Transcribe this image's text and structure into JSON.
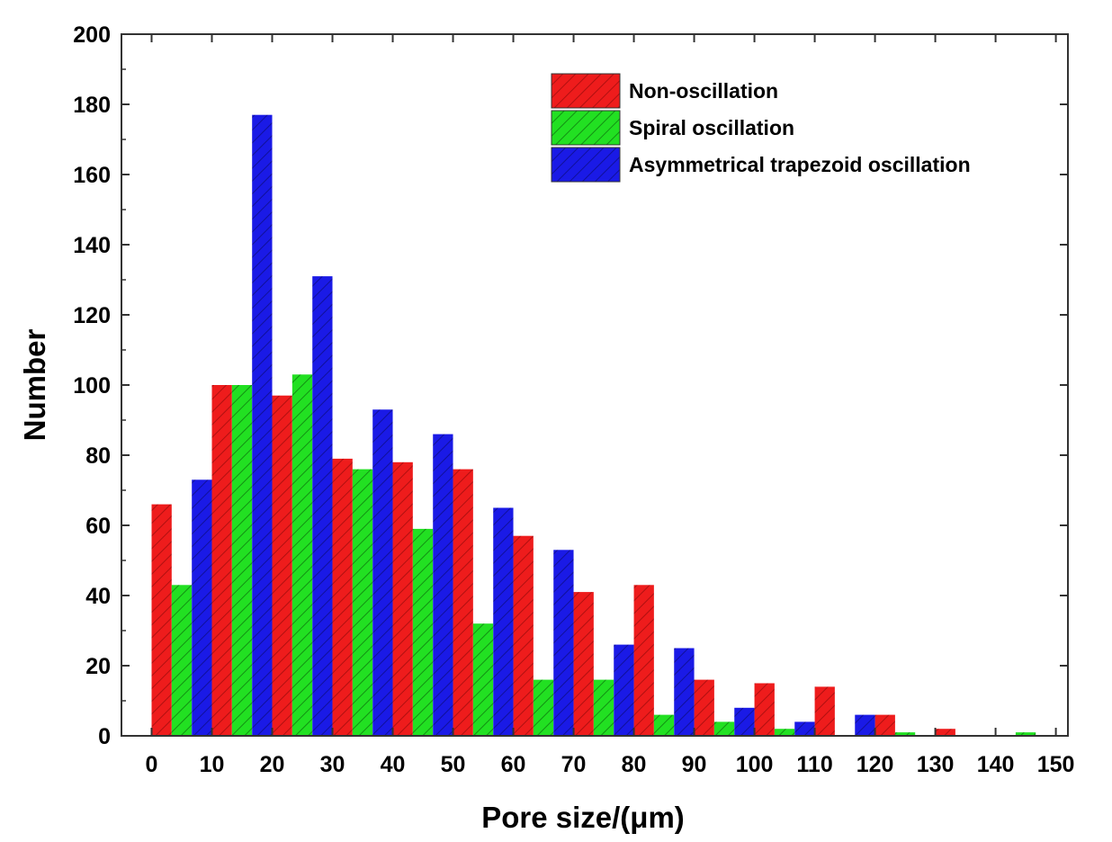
{
  "chart_data": {
    "type": "bar",
    "title": "",
    "xlabel": "Pore size/(μm)",
    "ylabel": "Number",
    "xlim": [
      -5,
      152
    ],
    "ylim": [
      0,
      200
    ],
    "xticks": [
      0,
      10,
      20,
      30,
      40,
      50,
      60,
      70,
      80,
      90,
      100,
      110,
      120,
      130,
      140,
      150
    ],
    "yticks": [
      0,
      20,
      40,
      60,
      80,
      100,
      120,
      140,
      160,
      180,
      200
    ],
    "bar_width": 3.33,
    "legend_position": "top-right",
    "grid": false,
    "series": [
      {
        "name": "Non-oscillation",
        "color": "#ee1c1c",
        "hatch": "#b01010",
        "x": [
          0,
          10,
          20,
          30,
          40,
          50,
          60,
          70,
          80,
          90,
          100,
          110,
          120,
          130,
          140
        ],
        "values": [
          66,
          100,
          97,
          79,
          78,
          76,
          57,
          41,
          43,
          16,
          15,
          14,
          6,
          2,
          0
        ]
      },
      {
        "name": "Spiral oscillation",
        "color": "#22e022",
        "hatch": "#129012",
        "x": [
          3.33,
          13.33,
          23.33,
          33.33,
          43.33,
          53.33,
          63.33,
          73.33,
          83.33,
          93.33,
          103.33,
          113.33,
          123.33,
          133.33,
          143.33
        ],
        "values": [
          43,
          100,
          103,
          76,
          59,
          32,
          16,
          16,
          6,
          4,
          2,
          0,
          1,
          0,
          1
        ]
      },
      {
        "name": "Asymmetrical trapezoid oscillation",
        "color": "#1a1ae6",
        "hatch": "#10109a",
        "x": [
          6.67,
          16.67,
          26.67,
          36.67,
          46.67,
          56.67,
          66.67,
          76.67,
          86.67,
          96.67,
          106.67,
          116.67,
          126.67,
          136.67,
          146.67
        ],
        "values": [
          73,
          177,
          131,
          93,
          86,
          65,
          53,
          26,
          25,
          8,
          4,
          6,
          0,
          0,
          0
        ]
      }
    ]
  }
}
